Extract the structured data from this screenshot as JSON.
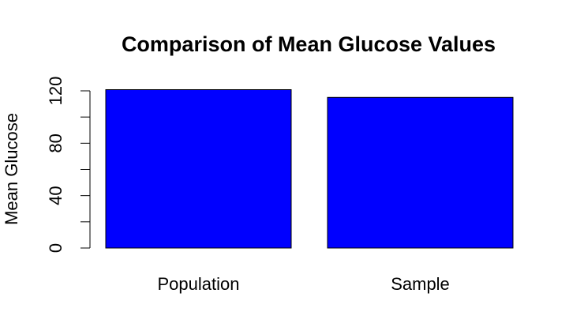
{
  "chart_data": {
    "type": "bar",
    "title": "Comparison of Mean Glucose Values",
    "xlabel": "",
    "ylabel": "Mean Glucose",
    "categories": [
      "Population",
      "Sample"
    ],
    "values": [
      120.9,
      115.0
    ],
    "ylim": [
      0,
      120
    ],
    "yticks": [
      0,
      20,
      40,
      60,
      80,
      100,
      120
    ],
    "ytick_labels": [
      "0",
      "",
      "40",
      "",
      "80",
      "",
      "120"
    ],
    "bar_color": "#0000FF",
    "bar_edge_color": "#000000",
    "grid": false,
    "legend": "none"
  }
}
